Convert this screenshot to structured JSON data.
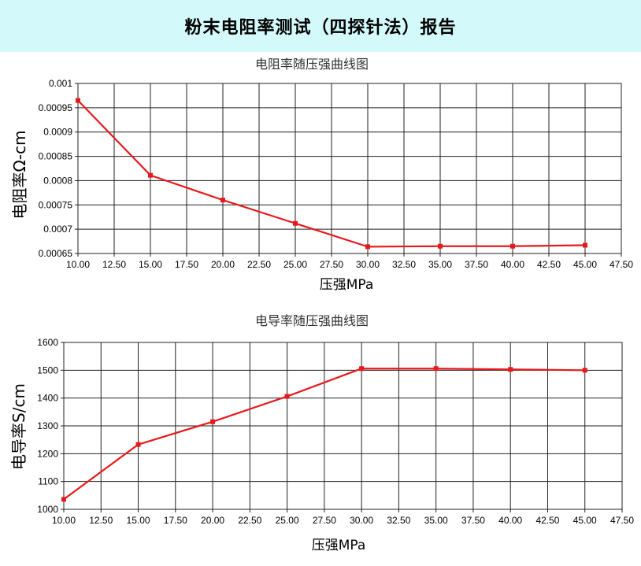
{
  "report": {
    "title": "粉末电阻率测试（四探针法）报告"
  },
  "chart_data": [
    {
      "type": "line",
      "title": "电阻率随压强曲线图",
      "xlabel": "压强MPa",
      "ylabel": "电阻率Ω-cm",
      "xlim": [
        10,
        47.5
      ],
      "ylim": [
        0.00065,
        0.001
      ],
      "x_ticks": [
        "10.00",
        "12.50",
        "15.00",
        "17.50",
        "20.00",
        "22.50",
        "25.00",
        "27.50",
        "30.00",
        "32.50",
        "35.00",
        "37.50",
        "40.00",
        "42.50",
        "45.00",
        "47.50"
      ],
      "y_ticks": [
        "0.00065",
        "0.0007",
        "0.00075",
        "0.0008",
        "0.00085",
        "0.0009",
        "0.00095",
        "0.001"
      ],
      "grid": true,
      "color": "#e8191c",
      "series": [
        {
          "x": [
            10,
            15,
            20,
            25,
            30,
            35,
            40,
            45
          ],
          "values": [
            0.000965,
            0.000811,
            0.00076,
            0.000712,
            0.000664,
            0.000665,
            0.000665,
            0.000667
          ]
        }
      ]
    },
    {
      "type": "line",
      "title": "电导率随压强曲线图",
      "xlabel": "压强MPa",
      "ylabel": "电导率S/cm",
      "xlim": [
        10,
        47.5
      ],
      "ylim": [
        1000,
        1600
      ],
      "x_ticks": [
        "10.00",
        "12.50",
        "15.00",
        "17.50",
        "20.00",
        "22.50",
        "25.00",
        "27.50",
        "30.00",
        "32.50",
        "35.00",
        "37.50",
        "40.00",
        "42.50",
        "45.00",
        "47.50"
      ],
      "y_ticks": [
        "1000",
        "1100",
        "1200",
        "1300",
        "1400",
        "1500",
        "1600"
      ],
      "grid": true,
      "color": "#e8191c",
      "series": [
        {
          "x": [
            10,
            15,
            20,
            25,
            30,
            35,
            40,
            45
          ],
          "values": [
            1036,
            1233,
            1315,
            1406,
            1506,
            1506,
            1503,
            1500
          ]
        }
      ]
    }
  ]
}
